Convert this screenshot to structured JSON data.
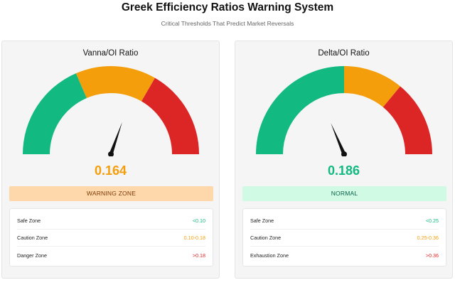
{
  "page": {
    "title": "Greek Efficiency Ratios Warning System",
    "subtitle": "Critical Thresholds That Predict Market Reversals"
  },
  "colors": {
    "safe": "#12b981",
    "caution": "#f59e0b",
    "danger": "#dc2626",
    "needle": "#111111"
  },
  "chart_data": [
    {
      "type": "gauge",
      "title": "Vanna/OI Ratio",
      "value": 0.164,
      "value_label": "0.164",
      "range": [
        0,
        0.27
      ],
      "bands": [
        {
          "name": "Safe Zone",
          "from": 0,
          "to": 0.1,
          "label": "<0.10",
          "color_key": "safe"
        },
        {
          "name": "Caution Zone",
          "from": 0.1,
          "to": 0.18,
          "label": "0.10-0.18",
          "color_key": "caution"
        },
        {
          "name": "Danger Zone",
          "from": 0.18,
          "to": 0.27,
          "label": ">0.18",
          "color_key": "danger"
        }
      ],
      "status": {
        "label": "WARNING ZONE",
        "bg": "#fed7aa",
        "fg": "#7c3a0a"
      },
      "value_color": "#f59e0b"
    },
    {
      "type": "gauge",
      "title": "Delta/OI Ratio",
      "value": 0.186,
      "value_label": "0.186",
      "range": [
        0,
        0.5
      ],
      "bands": [
        {
          "name": "Safe Zone",
          "from": 0,
          "to": 0.25,
          "label": "<0.25",
          "color_key": "safe"
        },
        {
          "name": "Caution Zone",
          "from": 0.25,
          "to": 0.36,
          "label": "0.25-0.36",
          "color_key": "caution"
        },
        {
          "name": "Exhaustion Zone",
          "from": 0.36,
          "to": 0.5,
          "label": ">0.36",
          "color_key": "danger"
        }
      ],
      "status": {
        "label": "NORMAL",
        "bg": "#d1fae5",
        "fg": "#065f46"
      },
      "value_color": "#12b981"
    }
  ]
}
